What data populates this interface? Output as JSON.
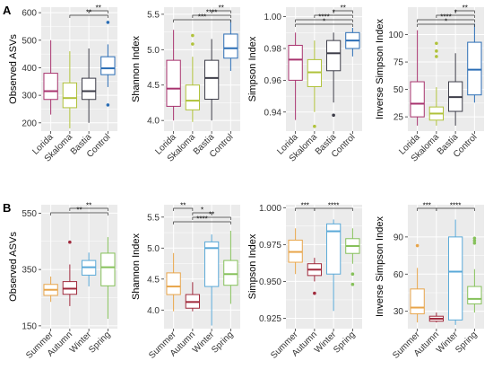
{
  "figure": {
    "row_labels": [
      "A",
      "B"
    ]
  },
  "chart_data": [
    {
      "type": "box",
      "row": 0,
      "col": 0,
      "ylabel": "Observed ASVs",
      "categories": [
        "Lorida",
        "Skaloma",
        "Bastia",
        "Control"
      ],
      "colors": [
        "#a8336e",
        "#b0c23a",
        "#3c3c48",
        "#2a6db5"
      ],
      "yticks": [
        200,
        300,
        400,
        500,
        600
      ],
      "ylim": [
        170,
        620
      ],
      "boxes": [
        {
          "min": 230,
          "q1": 285,
          "median": 315,
          "q3": 380,
          "max": 500,
          "outliers": []
        },
        {
          "min": 180,
          "q1": 255,
          "median": 290,
          "q3": 345,
          "max": 460,
          "outliers": []
        },
        {
          "min": 200,
          "q1": 285,
          "median": 315,
          "q3": 362,
          "max": 470,
          "outliers": []
        },
        {
          "min": 330,
          "q1": 375,
          "median": 398,
          "q3": 440,
          "max": 485,
          "outliers": [
            565,
            265
          ]
        }
      ],
      "brackets": [
        {
          "from": 3,
          "to": 4,
          "label": "**",
          "level": 0
        },
        {
          "from": 2,
          "to": 4,
          "label": "**",
          "level": 1
        }
      ]
    },
    {
      "type": "box",
      "row": 0,
      "col": 1,
      "ylabel": "Shannon Index",
      "categories": [
        "Lorida",
        "Skaloma",
        "Bastia",
        "Control"
      ],
      "colors": [
        "#a8336e",
        "#b0c23a",
        "#3c3c48",
        "#2a6db5"
      ],
      "yticks": [
        4.0,
        4.5,
        5.0,
        5.5
      ],
      "ylim": [
        3.85,
        5.6
      ],
      "boxes": [
        {
          "min": 4.0,
          "q1": 4.2,
          "median": 4.45,
          "q3": 4.85,
          "max": 5.28,
          "outliers": []
        },
        {
          "min": 3.98,
          "q1": 4.15,
          "median": 4.28,
          "q3": 4.5,
          "max": 4.9,
          "outliers": [
            5.2,
            5.08
          ]
        },
        {
          "min": 4.0,
          "q1": 4.3,
          "median": 4.6,
          "q3": 4.85,
          "max": 5.15,
          "outliers": []
        },
        {
          "min": 4.7,
          "q1": 4.88,
          "median": 5.02,
          "q3": 5.22,
          "max": 5.42,
          "outliers": []
        }
      ],
      "brackets": [
        {
          "from": 3,
          "to": 4,
          "label": "**",
          "level": 0
        },
        {
          "from": 2,
          "to": 4,
          "label": "****",
          "level": 1
        },
        {
          "from": 1,
          "to": 4,
          "label": "***",
          "level": 2
        }
      ]
    },
    {
      "type": "box",
      "row": 0,
      "col": 2,
      "ylabel": "Simpson Index",
      "categories": [
        "Lorida",
        "Skaloma",
        "Bastia",
        "Control"
      ],
      "colors": [
        "#a8336e",
        "#b0c23a",
        "#3c3c48",
        "#2a6db5"
      ],
      "yticks": [
        0.94,
        0.96,
        0.98,
        1.0
      ],
      "ylim": [
        0.928,
        1.006
      ],
      "boxes": [
        {
          "min": 0.935,
          "q1": 0.96,
          "median": 0.973,
          "q3": 0.982,
          "max": 0.99,
          "outliers": []
        },
        {
          "min": 0.94,
          "q1": 0.956,
          "median": 0.965,
          "q3": 0.973,
          "max": 0.985,
          "outliers": [
            0.931
          ]
        },
        {
          "min": 0.946,
          "q1": 0.966,
          "median": 0.977,
          "q3": 0.985,
          "max": 0.99,
          "outliers": [
            0.938
          ]
        },
        {
          "min": 0.975,
          "q1": 0.98,
          "median": 0.985,
          "q3": 0.99,
          "max": 0.993,
          "outliers": []
        }
      ],
      "brackets": [
        {
          "from": 3,
          "to": 4,
          "label": "**",
          "level": 0
        },
        {
          "from": 2,
          "to": 4,
          "label": "*",
          "level": 1
        },
        {
          "from": 1,
          "to": 4,
          "label": "****",
          "level": 2
        },
        {
          "from": 1,
          "to": 4,
          "label": "*",
          "level": 3
        }
      ]
    },
    {
      "type": "box",
      "row": 0,
      "col": 3,
      "ylabel": "Inverse Simpson Index",
      "categories": [
        "Lorida",
        "Skaloma",
        "Bastia",
        "Control"
      ],
      "colors": [
        "#a8336e",
        "#b0c23a",
        "#3c3c48",
        "#2a6db5"
      ],
      "yticks": [
        25,
        50,
        75,
        100
      ],
      "ylim": [
        12,
        125
      ],
      "boxes": [
        {
          "min": 17,
          "q1": 25,
          "median": 37,
          "q3": 57,
          "max": 104,
          "outliers": []
        },
        {
          "min": 17,
          "q1": 22,
          "median": 28,
          "q3": 34,
          "max": 52,
          "outliers": [
            92,
            85,
            80
          ]
        },
        {
          "min": 17,
          "q1": 30,
          "median": 43,
          "q3": 57,
          "max": 83,
          "outliers": []
        },
        {
          "min": 38,
          "q1": 45,
          "median": 68,
          "q3": 93,
          "max": 110,
          "outliers": []
        }
      ],
      "brackets": [
        {
          "from": 3,
          "to": 4,
          "label": "**",
          "level": 0
        },
        {
          "from": 2,
          "to": 4,
          "label": "*",
          "level": 1
        },
        {
          "from": 1,
          "to": 4,
          "label": "****",
          "level": 2
        },
        {
          "from": 1,
          "to": 4,
          "label": "*",
          "level": 3
        }
      ]
    },
    {
      "type": "box",
      "row": 1,
      "col": 0,
      "ylabel": "Observed ASVs",
      "categories": [
        "Summer",
        "Autumn",
        "Winter",
        "Spring"
      ],
      "colors": [
        "#e8a54a",
        "#a02a3c",
        "#5aa9d8",
        "#86c15a"
      ],
      "yticks": [
        150,
        350,
        550
      ],
      "ylim": [
        140,
        580
      ],
      "boxes": [
        {
          "min": 235,
          "q1": 258,
          "median": 278,
          "q3": 297,
          "max": 325,
          "outliers": []
        },
        {
          "min": 220,
          "q1": 262,
          "median": 282,
          "q3": 307,
          "max": 368,
          "outliers": [
            447
          ]
        },
        {
          "min": 290,
          "q1": 330,
          "median": 358,
          "q3": 382,
          "max": 410,
          "outliers": []
        },
        {
          "min": 175,
          "q1": 292,
          "median": 358,
          "q3": 408,
          "max": 465,
          "outliers": []
        }
      ],
      "brackets": [
        {
          "from": 2,
          "to": 4,
          "label": "**",
          "level": 0
        },
        {
          "from": 1,
          "to": 4,
          "label": "**",
          "level": 1
        }
      ]
    },
    {
      "type": "box",
      "row": 1,
      "col": 1,
      "ylabel": "Shannon Index",
      "categories": [
        "Summer",
        "Autumn",
        "Winter",
        "Spring"
      ],
      "colors": [
        "#e8a54a",
        "#a02a3c",
        "#5aa9d8",
        "#86c15a"
      ],
      "yticks": [
        4.0,
        4.5,
        5.0,
        5.5
      ],
      "ylim": [
        3.7,
        5.7
      ],
      "boxes": [
        {
          "min": 3.98,
          "q1": 4.25,
          "median": 4.38,
          "q3": 4.6,
          "max": 4.92,
          "outliers": []
        },
        {
          "min": 3.98,
          "q1": 4.03,
          "median": 4.13,
          "q3": 4.25,
          "max": 4.45,
          "outliers": []
        },
        {
          "min": 3.75,
          "q1": 4.38,
          "median": 5.0,
          "q3": 5.1,
          "max": 5.22,
          "outliers": []
        },
        {
          "min": 4.1,
          "q1": 4.4,
          "median": 4.58,
          "q3": 4.8,
          "max": 5.28,
          "outliers": []
        }
      ],
      "brackets": [
        {
          "from": 1,
          "to": 2,
          "label": "**",
          "level": 0
        },
        {
          "from": 2,
          "to": 3,
          "label": "*",
          "level": 1
        },
        {
          "from": 2,
          "to": 4,
          "label": "**",
          "level": 2
        },
        {
          "from": 1,
          "to": 4,
          "label": "****",
          "level": 3
        }
      ]
    },
    {
      "type": "box",
      "row": 1,
      "col": 2,
      "ylabel": "Simpson Index",
      "categories": [
        "Summer",
        "Autumn",
        "Winter",
        "Spring"
      ],
      "colors": [
        "#e8a54a",
        "#a02a3c",
        "#5aa9d8",
        "#86c15a"
      ],
      "yticks": [
        0.925,
        0.95,
        0.975,
        1.0
      ],
      "ylim": [
        0.918,
        1.002
      ],
      "boxes": [
        {
          "min": 0.955,
          "q1": 0.963,
          "median": 0.97,
          "q3": 0.978,
          "max": 0.986,
          "outliers": []
        },
        {
          "min": 0.95,
          "q1": 0.954,
          "median": 0.958,
          "q3": 0.962,
          "max": 0.966,
          "outliers": [
            0.942
          ]
        },
        {
          "min": 0.93,
          "q1": 0.955,
          "median": 0.984,
          "q3": 0.989,
          "max": 0.992,
          "outliers": []
        },
        {
          "min": 0.962,
          "q1": 0.969,
          "median": 0.974,
          "q3": 0.979,
          "max": 0.986,
          "outliers": [
            0.955,
            0.948
          ]
        }
      ],
      "brackets": [
        {
          "from": 1,
          "to": 2,
          "label": "***",
          "level": 0
        },
        {
          "from": 2,
          "to": 4,
          "label": "****",
          "level": 0
        }
      ]
    },
    {
      "type": "box",
      "row": 1,
      "col": 3,
      "ylabel": "Inverse Simpson Index",
      "categories": [
        "Summer",
        "Autumn",
        "Winter",
        "Spring"
      ],
      "colors": [
        "#e8a54a",
        "#a02a3c",
        "#5aa9d8",
        "#86c15a"
      ],
      "yticks": [
        30,
        60,
        90
      ],
      "ylim": [
        16,
        116
      ],
      "boxes": [
        {
          "min": 21,
          "q1": 28,
          "median": 33,
          "q3": 48,
          "max": 65,
          "outliers": [
            83
          ]
        },
        {
          "min": 21,
          "q1": 22,
          "median": 24,
          "q3": 26,
          "max": 29,
          "outliers": []
        },
        {
          "min": 19,
          "q1": 23,
          "median": 62,
          "q3": 90,
          "max": 104,
          "outliers": []
        },
        {
          "min": 29,
          "q1": 36,
          "median": 40,
          "q3": 50,
          "max": 64,
          "outliers": [
            89,
            87,
            85
          ]
        }
      ],
      "brackets": [
        {
          "from": 1,
          "to": 2,
          "label": "***",
          "level": 0
        },
        {
          "from": 2,
          "to": 4,
          "label": "****",
          "level": 0
        }
      ]
    }
  ]
}
